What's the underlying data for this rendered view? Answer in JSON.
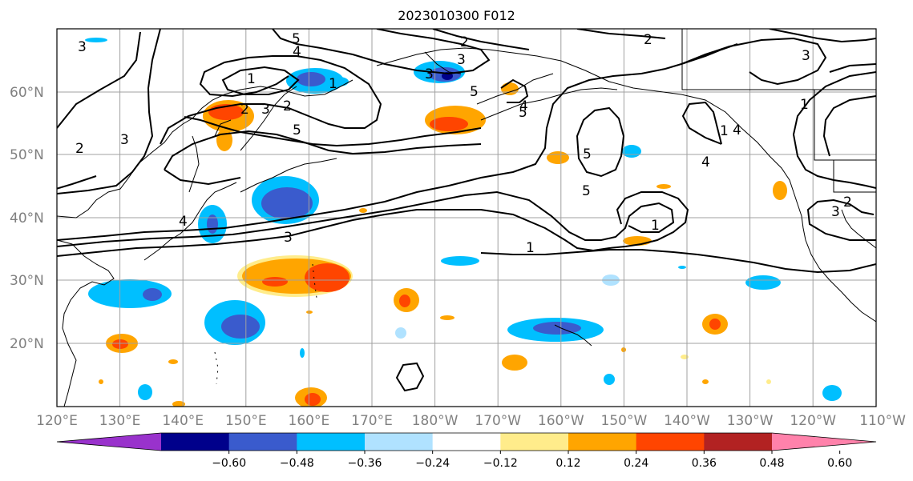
{
  "title": "2023010300 F012",
  "lat_labels": [
    "60°N",
    "50°N",
    "40°N",
    "30°N",
    "20°N"
  ],
  "lon_labels": [
    "120°E",
    "130°E",
    "140°E",
    "150°E",
    "160°E",
    "170°E",
    "180°W",
    "170°W",
    "160°W",
    "150°W",
    "140°W",
    "130°W",
    "120°W",
    "110°W"
  ],
  "colorbar": {
    "ticks": [
      "−0.60",
      "−0.48",
      "−0.36",
      "−0.24",
      "−0.12",
      "0.12",
      "0.24",
      "0.36",
      "0.48",
      "0.60"
    ],
    "colors": [
      "#9932cc",
      "#00008b",
      "#3a5bcd",
      "#00bfff",
      "#b0e2ff",
      "#ffffff",
      "#ffec8b",
      "#ffa500",
      "#ff4500",
      "#b22222",
      "#ff82ab"
    ]
  },
  "contour_labels": [
    "3",
    "5",
    "4",
    "1",
    "2",
    "3",
    "2",
    "5",
    "2",
    "3",
    "3",
    "2",
    "3",
    "1",
    "5",
    "5",
    "4",
    "4",
    "1",
    "4",
    "4",
    "5",
    "3",
    "1",
    "1",
    "5",
    "2",
    "3",
    "1",
    "2",
    "3"
  ],
  "colors": {
    "positive_shading": [
      "#ffec8b",
      "#ffa500",
      "#ff4500"
    ],
    "negative_shading": [
      "#b0e2ff",
      "#00bfff",
      "#3a5bcd",
      "#00008b"
    ],
    "grid": "#a0a0a0",
    "contour": "#000000"
  }
}
